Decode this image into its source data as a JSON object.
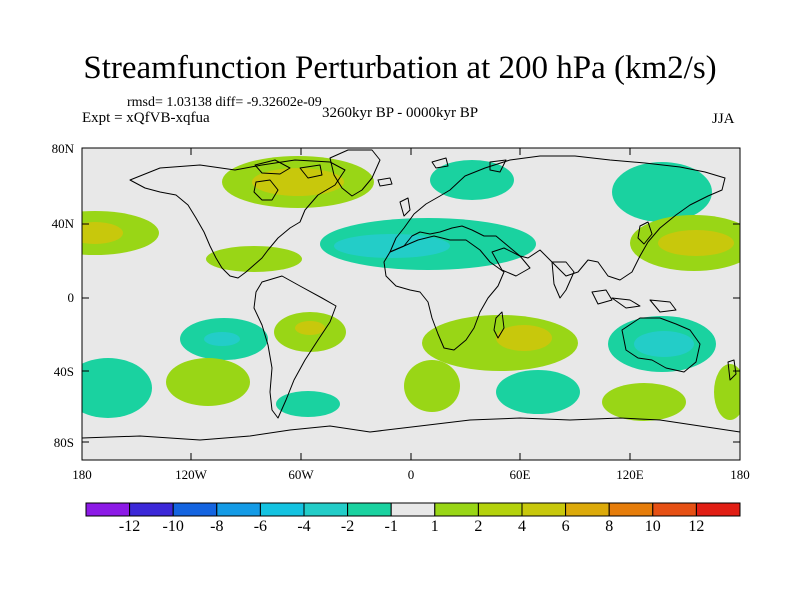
{
  "title": "Streamfunction Perturbation at 200 hPa (km2/s)",
  "stats": "rmsd= 1.03138 diff= -9.32602e-09",
  "experiment": "Expt = xQfVB-xqfua",
  "period": "3260kyr BP - 0000kyr BP",
  "season": "JJA",
  "map": {
    "lat_ticks": [
      "80N",
      "40N",
      "0",
      "40S",
      "80S"
    ],
    "lon_ticks": [
      "180",
      "120W",
      "60W",
      "0",
      "60E",
      "120E",
      "180"
    ],
    "background_color": "#e8e8e8",
    "anomalies": [
      {
        "region": "north-america-arctic",
        "level": 2,
        "color": "#99d616"
      },
      {
        "region": "north-america-core",
        "level": 4,
        "color": "#c8c80c"
      },
      {
        "region": "north-pacific-east",
        "level": 2,
        "color": "#99d616"
      },
      {
        "region": "north-pacific-east-core",
        "level": 4,
        "color": "#c8c80c"
      },
      {
        "region": "caribbean",
        "level": 2,
        "color": "#99d616"
      },
      {
        "region": "north-atlantic-africa",
        "level": -1,
        "color": "#1ad2a0"
      },
      {
        "region": "north-atlantic-core",
        "level": -2,
        "color": "#23cdc8"
      },
      {
        "region": "scandinavia",
        "level": -1,
        "color": "#1ad2a0"
      },
      {
        "region": "northeast-asia",
        "level": -1,
        "color": "#1ad2a0"
      },
      {
        "region": "northwest-pacific",
        "level": 2,
        "color": "#99d616"
      },
      {
        "region": "northwest-pacific-core",
        "level": 4,
        "color": "#c8c80c"
      },
      {
        "region": "south-pacific-east",
        "level": -1,
        "color": "#1ad2a0"
      },
      {
        "region": "south-pacific-east-core",
        "level": -2,
        "color": "#23cdc8"
      },
      {
        "region": "south-america",
        "level": 2,
        "color": "#99d616"
      },
      {
        "region": "south-america-core",
        "level": 4,
        "color": "#c8c80c"
      },
      {
        "region": "south-pacific-far",
        "level": 2,
        "color": "#99d616"
      },
      {
        "region": "south-pacific-west-edge",
        "level": -1,
        "color": "#1ad2a0"
      },
      {
        "region": "drake-passage",
        "level": -1,
        "color": "#1ad2a0"
      },
      {
        "region": "southern-africa",
        "level": 2,
        "color": "#99d616"
      },
      {
        "region": "southern-africa-core",
        "level": 4,
        "color": "#c8c80c"
      },
      {
        "region": "south-atlantic-south",
        "level": 2,
        "color": "#99d616"
      },
      {
        "region": "southern-indian-ocean",
        "level": -1,
        "color": "#1ad2a0"
      },
      {
        "region": "australia",
        "level": -1,
        "color": "#1ad2a0"
      },
      {
        "region": "australia-core",
        "level": -2,
        "color": "#23cdc8"
      },
      {
        "region": "south-of-australia",
        "level": 2,
        "color": "#99d616"
      },
      {
        "region": "southwest-pacific",
        "level": 2,
        "color": "#99d616"
      }
    ]
  },
  "colorbar": {
    "colors": [
      "#8c1ae6",
      "#3c28d8",
      "#1464e0",
      "#149be6",
      "#14c3e1",
      "#23cdc8",
      "#1ad2a0",
      "#e8e8e8",
      "#99d616",
      "#b4d20c",
      "#c8c80c",
      "#dcaa0a",
      "#e67d0a",
      "#e65014",
      "#e11e14"
    ],
    "labels": [
      "-12",
      "-10",
      "-8",
      "-6",
      "-4",
      "-2",
      "-1",
      "1",
      "2",
      "4",
      "6",
      "8",
      "10",
      "12"
    ]
  }
}
